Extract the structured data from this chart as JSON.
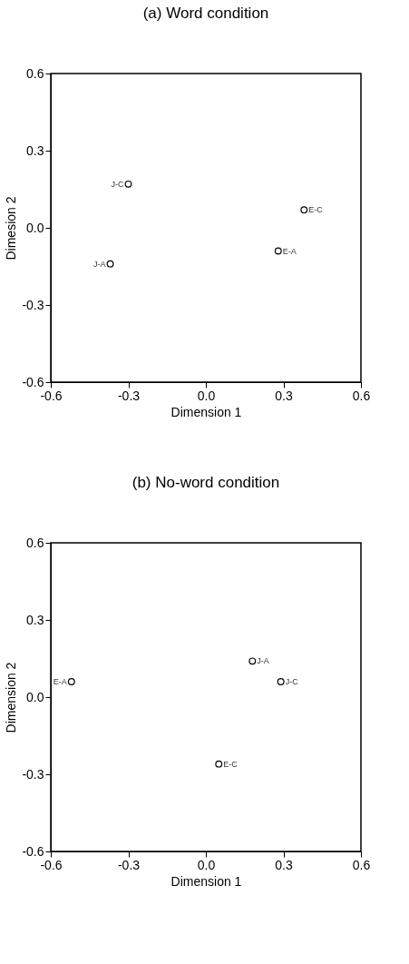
{
  "chart_data": [
    {
      "type": "scatter",
      "title": "(a)     Word condition",
      "xlabel": "Dimension 1",
      "ylabel": "Dimesion 2",
      "marker": "circle",
      "grid": false,
      "xlim": [
        -0.6,
        0.6
      ],
      "ylim": [
        -0.6,
        0.6
      ],
      "xticks": [
        -0.6,
        -0.3,
        {
          "value": 0,
          "label": "0.0"
        },
        0.3,
        0.6
      ],
      "yticks": [
        -0.6,
        -0.3,
        {
          "value": 0,
          "label": "0.0"
        },
        0.3,
        0.6
      ],
      "series": [
        {
          "color": "#000000",
          "x": [
            -0.3,
            -0.37,
            0.38,
            0.28
          ],
          "values": [
            0.17,
            -0.14,
            0.07,
            -0.09
          ]
        }
      ],
      "annotations": [
        {
          "text": "J-C",
          "x": -0.3,
          "y": 0.17
        },
        {
          "text": "J-A",
          "x": -0.37,
          "y": -0.14
        },
        {
          "text": "E-C",
          "x": 0.38,
          "y": 0.07
        },
        {
          "text": "E-A",
          "x": 0.28,
          "y": -0.09
        }
      ]
    },
    {
      "type": "scatter",
      "title": "(b)     No-word condition",
      "xlabel": "Dimension 1",
      "ylabel": "Dimension 2",
      "marker": "circle",
      "grid": false,
      "xlim": [
        -0.6,
        0.6
      ],
      "ylim": [
        -0.6,
        0.6
      ],
      "xticks": [
        -0.6,
        -0.3,
        {
          "value": 0,
          "label": "0.0"
        },
        0.3,
        0.6
      ],
      "yticks": [
        -0.6,
        -0.3,
        {
          "value": 0,
          "label": "0.0"
        },
        0.3,
        0.6
      ],
      "series": [
        {
          "color": "#000000",
          "x": [
            0.18,
            0.29,
            -0.52,
            0.05
          ],
          "values": [
            0.14,
            0.06,
            0.06,
            -0.26
          ]
        }
      ],
      "annotations": [
        {
          "text": "J-A",
          "x": 0.18,
          "y": 0.14
        },
        {
          "text": "J-C",
          "x": 0.29,
          "y": 0.06
        },
        {
          "text": "E-A",
          "x": -0.52,
          "y": 0.06
        },
        {
          "text": "E-C",
          "x": 0.05,
          "y": -0.26
        }
      ]
    }
  ]
}
